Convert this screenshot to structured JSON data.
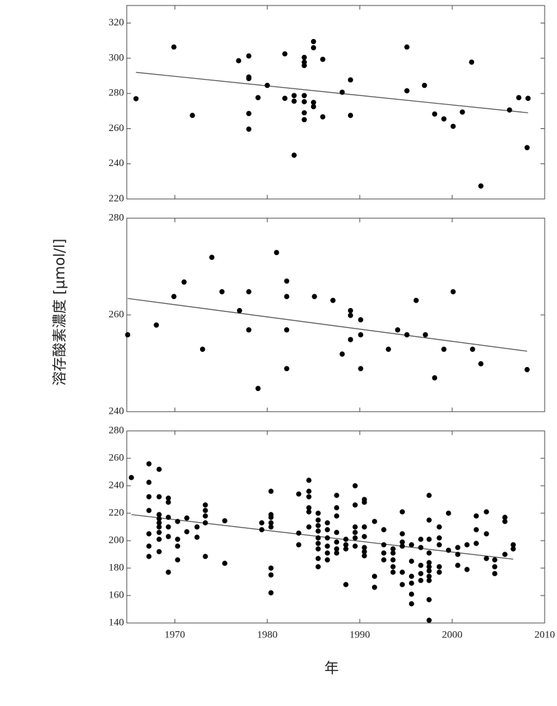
{
  "ylabel": "溶存酸素濃度 [µmol/l]",
  "xlabel": "年",
  "chart_data": [
    {
      "type": "scatter",
      "color": "#000000",
      "xlim": [
        1964.8,
        2010
      ],
      "xticks": [
        1970,
        1980,
        1990,
        2000,
        2010
      ],
      "ylim": [
        220,
        330
      ],
      "yticks": [
        220,
        240,
        260,
        280,
        300,
        320
      ],
      "x": [
        1965.8,
        1969.9,
        1971.9,
        1976.9,
        1978.0,
        1978.0,
        1978.0,
        1978.0,
        1978.0,
        1979.0,
        1980.0,
        1981.9,
        1981.9,
        1982.9,
        1982.9,
        1982.9,
        1984.0,
        1984.0,
        1984.0,
        1984.0,
        1984.0,
        1984.0,
        1984.0,
        1985.0,
        1985.0,
        1985.0,
        1985.0,
        1986.0,
        1986.0,
        1988.1,
        1989.0,
        1989.0,
        1995.1,
        1995.1,
        1997.0,
        1998.1,
        1999.1,
        2000.1,
        2001.1,
        2002.1,
        2003.1,
        2006.2,
        2007.2,
        2008.2,
        2008.1
      ],
      "values": [
        277,
        306.4,
        267.5,
        298.6,
        301.3,
        289.3,
        288.5,
        268.6,
        259.7,
        277.6,
        284.6,
        302.5,
        277.2,
        278.8,
        275.6,
        244.9,
        278.8,
        300.5,
        297.8,
        295.9,
        275.3,
        269,
        265.1,
        309.5,
        306,
        274.9,
        272.5,
        299.4,
        266.7,
        280.7,
        287.7,
        267.5,
        306.4,
        281.5,
        284.6,
        268.3,
        265.5,
        261.3,
        269.4,
        297.8,
        227.4,
        270.6,
        277.6,
        277.2,
        249.2
      ],
      "trend": {
        "x": [
          1965.8,
          2008.2
        ],
        "values": [
          292,
          269
        ],
        "color": "#555555"
      }
    },
    {
      "type": "scatter",
      "color": "#000000",
      "xlim": [
        1964.8,
        2010
      ],
      "xticks": [
        1970,
        1980,
        1990,
        2000,
        2010
      ],
      "ylim": [
        240,
        280
      ],
      "yticks": [
        240,
        260,
        280
      ],
      "x": [
        1964.9,
        1968.0,
        1969.9,
        1971.0,
        1973.0,
        1974.0,
        1975.1,
        1977.0,
        1978.0,
        1978.0,
        1979.0,
        1981.0,
        1982.1,
        1982.1,
        1982.1,
        1982.1,
        1985.1,
        1987.1,
        1988.1,
        1989.0,
        1989.0,
        1989.0,
        1990.1,
        1990.1,
        1990.1,
        1993.1,
        1994.1,
        1995.1,
        1996.1,
        1997.1,
        1998.1,
        1999.1,
        2000.1,
        2002.2,
        2003.1,
        2008.1
      ],
      "values": [
        255.9,
        257.9,
        263.8,
        266.8,
        252.9,
        271.9,
        264.8,
        260.9,
        264.8,
        256.9,
        244.8,
        272.9,
        267,
        263.8,
        256.9,
        248.9,
        263.8,
        263,
        251.9,
        260.9,
        259.9,
        254.9,
        259,
        255.9,
        248.9,
        252.9,
        256.9,
        255.9,
        263,
        255.9,
        247,
        252.9,
        264.8,
        252.9,
        249.9,
        248.7
      ],
      "trend": {
        "x": [
          1964.9,
          2008.1
        ],
        "values": [
          263.4,
          252.5
        ],
        "color": "#555555"
      }
    },
    {
      "type": "scatter",
      "color": "#000000",
      "xlim": [
        1964.8,
        2010
      ],
      "xticks": [
        1970,
        1980,
        1990,
        2000,
        2010
      ],
      "ylim": [
        140,
        280
      ],
      "yticks": [
        140,
        160,
        180,
        200,
        220,
        240,
        260,
        280
      ],
      "x": [
        1965.3,
        1967.2,
        1967.2,
        1967.2,
        1967.2,
        1967.2,
        1967.2,
        1967.2,
        1968.3,
        1968.3,
        1968.3,
        1968.3,
        1968.3,
        1968.3,
        1968.3,
        1968.3,
        1968.3,
        1969.3,
        1969.3,
        1969.3,
        1969.3,
        1969.3,
        1969.3,
        1970.3,
        1970.3,
        1970.3,
        1970.3,
        1971.3,
        1971.3,
        1972.4,
        1972.4,
        1973.3,
        1973.3,
        1973.3,
        1973.3,
        1973.3,
        1975.4,
        1975.4,
        1979.4,
        1979.4,
        1980.4,
        1980.4,
        1980.4,
        1980.4,
        1980.4,
        1980.4,
        1980.4,
        1980.4,
        1983.4,
        1983.4,
        1983.4,
        1984.5,
        1984.5,
        1984.5,
        1984.5,
        1984.5,
        1984.5,
        1985.5,
        1985.5,
        1985.5,
        1985.5,
        1985.5,
        1985.5,
        1985.5,
        1985.5,
        1985.5,
        1986.5,
        1986.5,
        1986.5,
        1986.5,
        1986.5,
        1986.5,
        1987.5,
        1987.5,
        1987.5,
        1987.5,
        1987.5,
        1987.5,
        1987.5,
        1988.5,
        1988.5,
        1988.5,
        1988.5,
        1989.5,
        1989.5,
        1989.5,
        1989.5,
        1989.5,
        1989.5,
        1990.5,
        1990.5,
        1990.5,
        1990.5,
        1990.5,
        1990.5,
        1990.5,
        1991.6,
        1991.6,
        1991.6,
        1992.6,
        1992.6,
        1992.6,
        1992.6,
        1993.6,
        1993.6,
        1993.6,
        1993.6,
        1993.6,
        1994.6,
        1994.6,
        1994.6,
        1994.6,
        1994.6,
        1994.6,
        1995.6,
        1995.6,
        1995.6,
        1995.6,
        1995.6,
        1995.6,
        1996.6,
        1996.6,
        1996.6,
        1996.6,
        1996.6,
        1997.5,
        1997.5,
        1997.5,
        1997.5,
        1997.5,
        1997.5,
        1997.5,
        1997.5,
        1997.5,
        1997.5,
        1997.5,
        1998.6,
        1998.6,
        1998.6,
        1998.6,
        1998.6,
        1999.6,
        1999.6,
        2000.6,
        2000.6,
        2000.6,
        2001.6,
        2001.6,
        2002.6,
        2002.6,
        2002.6,
        2003.7,
        2003.7,
        2003.7,
        2004.6,
        2004.6,
        2004.6,
        2005.7,
        2005.7,
        2005.7,
        2006.6,
        2006.6
      ],
      "values": [
        246,
        256,
        242.5,
        232,
        222,
        205,
        196,
        188.5,
        252,
        232,
        219,
        216,
        213,
        210,
        206,
        201,
        192,
        231,
        228,
        217,
        210,
        203,
        177,
        214,
        201,
        196,
        186,
        216.5,
        206.5,
        210,
        202.5,
        226,
        222,
        218,
        213,
        188.5,
        214.5,
        183.5,
        213,
        208,
        236,
        219,
        217,
        213,
        210,
        180,
        175,
        162,
        234,
        205.5,
        197,
        244,
        236,
        232,
        224,
        221,
        210,
        220,
        215,
        211,
        207,
        202,
        198,
        194,
        187,
        181,
        213,
        208,
        202,
        196,
        191,
        186,
        233,
        224,
        218,
        206,
        199,
        194,
        191,
        201,
        197,
        194,
        168,
        240,
        226,
        210,
        206,
        202,
        196,
        230,
        228,
        210,
        203,
        195,
        192,
        189,
        214,
        174,
        166,
        208,
        197,
        191,
        186,
        194,
        191,
        186,
        181,
        177,
        221,
        205,
        199,
        196,
        177,
        168,
        197,
        185,
        174,
        169,
        161,
        154,
        201,
        195,
        182,
        176,
        171,
        233,
        215,
        201,
        191,
        184,
        181,
        178,
        174,
        171,
        157,
        142,
        210,
        202,
        197,
        181,
        177,
        220,
        193,
        195,
        190,
        182,
        197,
        179,
        218,
        208,
        198,
        221,
        205,
        187,
        186,
        181,
        176,
        217,
        214,
        190,
        197,
        194
      ],
      "trend": {
        "x": [
          1965.3,
          2006.6
        ],
        "values": [
          219,
          186.5
        ],
        "color": "#555555"
      }
    }
  ]
}
